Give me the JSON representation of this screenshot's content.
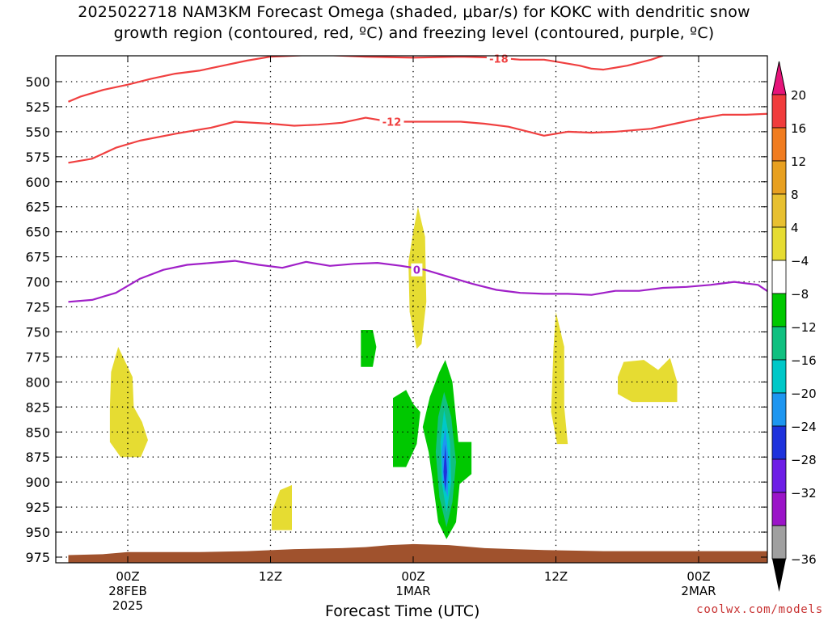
{
  "title": {
    "line1": "2025022718 NAM3KM Forecast Omega (shaded, μbar/s) for KOKC with dendritic snow",
    "line2": "growth region (contoured, red, ºC) and freezing level (contoured, purple, ºC)"
  },
  "credit": "coolwx.com/models",
  "chart_data": {
    "type": "time-height contour",
    "x_label": "Forecast Time (UTC)",
    "x_range_hours": [
      -5,
      55
    ],
    "x_ticks": [
      {
        "h": 0,
        "l1": "00Z",
        "l2": "28FEB",
        "l3": "2025"
      },
      {
        "h": 12,
        "l1": "12Z",
        "l2": "",
        "l3": ""
      },
      {
        "h": 24,
        "l1": "00Z",
        "l2": "1MAR",
        "l3": ""
      },
      {
        "h": 36,
        "l1": "12Z",
        "l2": "",
        "l3": ""
      },
      {
        "h": 48,
        "l1": "00Z",
        "l2": "2MAR",
        "l3": ""
      }
    ],
    "y_unit": "hPa",
    "y_range": [
      985,
      475
    ],
    "y_ticks": [
      500,
      525,
      550,
      575,
      600,
      625,
      650,
      675,
      700,
      725,
      750,
      775,
      800,
      825,
      850,
      875,
      900,
      925,
      950,
      975
    ],
    "grid": true,
    "isotherms": [
      {
        "label": "-18",
        "color": "#f04040",
        "points": [
          [
            -5,
            520
          ],
          [
            -4,
            515
          ],
          [
            -2,
            508
          ],
          [
            0,
            503
          ],
          [
            2,
            497
          ],
          [
            4,
            492
          ],
          [
            6,
            489
          ],
          [
            8,
            484
          ],
          [
            10,
            479
          ],
          [
            12,
            475
          ],
          [
            16,
            473
          ],
          [
            20,
            475
          ],
          [
            24,
            476
          ],
          [
            28,
            475
          ],
          [
            31,
            476
          ],
          [
            33,
            478
          ],
          [
            35,
            478
          ],
          [
            36,
            480
          ],
          [
            38,
            484
          ],
          [
            39,
            487
          ],
          [
            40,
            488
          ],
          [
            42,
            484
          ],
          [
            44,
            478
          ],
          [
            45,
            474
          ]
        ],
        "label_at": [
          31.2,
          477
        ]
      },
      {
        "label": "-12",
        "color": "#f04040",
        "points": [
          [
            -5,
            581
          ],
          [
            -3,
            577
          ],
          [
            -1,
            566
          ],
          [
            1,
            559
          ],
          [
            4,
            552
          ],
          [
            7,
            546
          ],
          [
            9,
            540
          ],
          [
            12,
            542
          ],
          [
            14,
            544
          ],
          [
            16,
            543
          ],
          [
            18,
            541
          ],
          [
            20,
            536
          ],
          [
            22,
            540
          ],
          [
            25,
            540
          ],
          [
            28,
            540
          ],
          [
            30,
            542
          ],
          [
            32,
            545
          ],
          [
            34,
            551
          ],
          [
            35,
            554
          ],
          [
            37,
            550
          ],
          [
            39,
            551
          ],
          [
            41,
            550
          ],
          [
            44,
            547
          ],
          [
            46,
            542
          ],
          [
            48,
            537
          ],
          [
            50,
            533
          ],
          [
            52,
            533
          ],
          [
            54,
            532
          ],
          [
            55,
            529
          ]
        ],
        "label_at": [
          22.2,
          540
        ]
      },
      {
        "label": "0",
        "color": "#a020c8",
        "points": [
          [
            -5,
            720
          ],
          [
            -3,
            718
          ],
          [
            -1,
            711
          ],
          [
            1,
            697
          ],
          [
            3,
            688
          ],
          [
            5,
            683
          ],
          [
            7,
            681
          ],
          [
            9,
            679
          ],
          [
            11,
            683
          ],
          [
            13,
            686
          ],
          [
            15,
            680
          ],
          [
            17,
            684
          ],
          [
            19,
            682
          ],
          [
            21,
            681
          ],
          [
            23,
            684
          ],
          [
            25,
            688
          ],
          [
            27,
            695
          ],
          [
            29,
            702
          ],
          [
            31,
            708
          ],
          [
            33,
            711
          ],
          [
            35,
            712
          ],
          [
            37,
            712
          ],
          [
            39,
            713
          ],
          [
            41,
            709
          ],
          [
            43,
            709
          ],
          [
            45,
            706
          ],
          [
            47,
            705
          ],
          [
            49,
            703
          ],
          [
            51,
            700
          ],
          [
            53,
            703
          ],
          [
            54,
            711
          ],
          [
            55,
            713
          ]
        ],
        "label_at": [
          24.3,
          688
        ]
      }
    ],
    "omega_regions": [
      {
        "value": "4 to 8",
        "color": "#e6dc32",
        "points": [
          [
            -1.4,
            790
          ],
          [
            -0.8,
            765
          ],
          [
            0.4,
            795
          ],
          [
            0.5,
            825
          ],
          [
            1.2,
            840
          ],
          [
            1.7,
            858
          ],
          [
            1.1,
            875
          ],
          [
            -0.6,
            875
          ],
          [
            -1.5,
            860
          ],
          [
            -1.5,
            825
          ]
        ]
      },
      {
        "value": "4 to 8",
        "color": "#e6dc32",
        "points": [
          [
            24,
            650
          ],
          [
            24.4,
            625
          ],
          [
            25,
            655
          ],
          [
            25.1,
            720
          ],
          [
            24.7,
            762
          ],
          [
            24.3,
            767
          ],
          [
            23.7,
            730
          ],
          [
            23.6,
            680
          ]
        ]
      },
      {
        "value": "4 to 8",
        "color": "#e6dc32",
        "points": [
          [
            12.1,
            930
          ],
          [
            12.8,
            908
          ],
          [
            13.8,
            903
          ],
          [
            13.8,
            948
          ],
          [
            12.1,
            948
          ]
        ]
      },
      {
        "value": "4 to 8",
        "color": "#e6dc32",
        "points": [
          [
            35.8,
            765
          ],
          [
            36,
            730
          ],
          [
            36.7,
            765
          ],
          [
            36.7,
            825
          ],
          [
            37,
            862
          ],
          [
            36.1,
            862
          ],
          [
            35.6,
            830
          ]
        ]
      },
      {
        "value": "4 to 8",
        "color": "#e6dc32",
        "points": [
          [
            41.7,
            780
          ],
          [
            43.4,
            778
          ],
          [
            44.6,
            788
          ],
          [
            45.6,
            776
          ],
          [
            46.2,
            800
          ],
          [
            46.2,
            820
          ],
          [
            42.4,
            820
          ],
          [
            41.2,
            812
          ],
          [
            41.2,
            795
          ]
        ]
      },
      {
        "value": "-8 to -4",
        "color": "#00c800",
        "points": [
          [
            19.6,
            748
          ],
          [
            20.6,
            748
          ],
          [
            20.9,
            765
          ],
          [
            20.6,
            785
          ],
          [
            19.6,
            785
          ]
        ]
      },
      {
        "value": "-8 to -4",
        "color": "#00c800",
        "points": [
          [
            22.3,
            816
          ],
          [
            23.4,
            808
          ],
          [
            24,
            822
          ],
          [
            24.6,
            830
          ],
          [
            24.3,
            862
          ],
          [
            23.4,
            885
          ],
          [
            22.3,
            885
          ]
        ]
      },
      {
        "value": "-8 to -4",
        "color": "#00c800",
        "points": [
          [
            25.4,
            815
          ],
          [
            26.2,
            790
          ],
          [
            26.7,
            778
          ],
          [
            27.3,
            800
          ],
          [
            27.8,
            860
          ],
          [
            28.9,
            860
          ],
          [
            28.9,
            892
          ],
          [
            27.9,
            902
          ],
          [
            27.6,
            940
          ],
          [
            26.8,
            957
          ],
          [
            26.1,
            940
          ],
          [
            25.6,
            895
          ],
          [
            25.3,
            870
          ],
          [
            24.8,
            845
          ]
        ]
      },
      {
        "value": "-12 to -8",
        "color": "#10c080",
        "points": [
          [
            26.6,
            810
          ],
          [
            27.2,
            835
          ],
          [
            27.6,
            880
          ],
          [
            27.3,
            920
          ],
          [
            26.8,
            945
          ],
          [
            26.2,
            915
          ],
          [
            25.9,
            870
          ],
          [
            26.1,
            835
          ]
        ]
      },
      {
        "value": "-16 to -12",
        "color": "#00c8c8",
        "points": [
          [
            26.6,
            828
          ],
          [
            27.1,
            860
          ],
          [
            27.2,
            900
          ],
          [
            26.8,
            930
          ],
          [
            26.4,
            900
          ],
          [
            26.3,
            860
          ]
        ]
      },
      {
        "value": "-20 to -16",
        "color": "#1e96f0",
        "points": [
          [
            26.7,
            845
          ],
          [
            27,
            880
          ],
          [
            26.9,
            915
          ],
          [
            26.5,
            900
          ],
          [
            26.4,
            870
          ]
        ]
      },
      {
        "value": "-24 to -20",
        "color": "#1e32dc",
        "points": [
          [
            26.7,
            862
          ],
          [
            26.85,
            890
          ],
          [
            26.7,
            910
          ],
          [
            26.55,
            890
          ]
        ]
      }
    ],
    "terrain": {
      "color": "#a0522d",
      "points": [
        [
          -5,
          973
        ],
        [
          -2,
          972
        ],
        [
          0,
          970
        ],
        [
          6,
          970
        ],
        [
          10,
          969
        ],
        [
          14,
          967
        ],
        [
          18,
          966
        ],
        [
          20,
          965
        ],
        [
          22,
          963
        ],
        [
          24,
          962
        ],
        [
          27,
          963
        ],
        [
          30,
          966
        ],
        [
          35,
          968
        ],
        [
          40,
          969
        ],
        [
          45,
          969
        ],
        [
          50,
          969
        ],
        [
          55,
          969
        ]
      ]
    },
    "colorbar": {
      "labels": [
        "20",
        "16",
        "12",
        "8",
        "4",
        "−4",
        "−8",
        "−12",
        "−16",
        "−20",
        "−24",
        "−28",
        "−32",
        "−36"
      ],
      "colors": [
        "#f03c3c",
        "#f07c20",
        "#e8a020",
        "#e8c030",
        "#e6dc32",
        "#ffffff",
        "#00c800",
        "#10c080",
        "#00c8c8",
        "#1e96f0",
        "#1e32dc",
        "#6e1ee6",
        "#9b14c8",
        "#a0a0a0"
      ],
      "top_arrow_color": "#e6147a",
      "bottom_arrow_color": "#000000"
    }
  }
}
